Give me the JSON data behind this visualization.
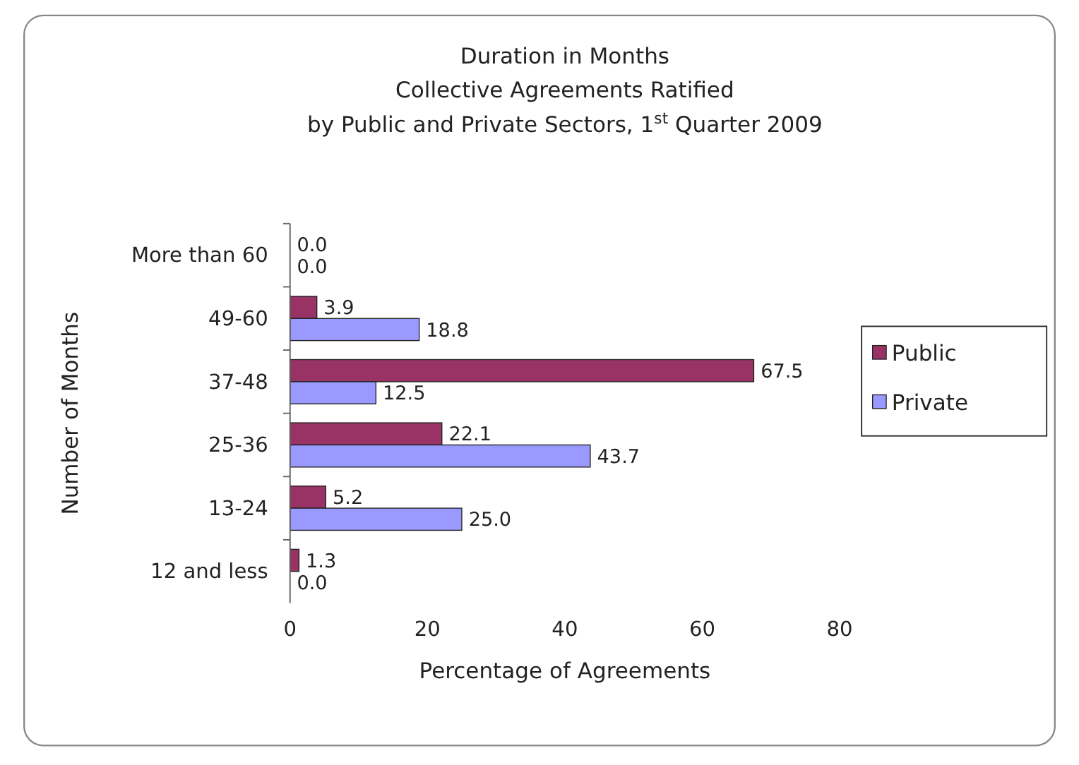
{
  "chart_data": {
    "type": "bar",
    "orientation": "horizontal",
    "title": "Duration in Months\nCollective Agreements Ratified\nby Public and Private Sectors, 1$^{st}$ Quarter 2009",
    "xlabel": "Percentage of Agreements",
    "ylabel": "Number of Months",
    "categories": [
      "More than 60",
      "49-60",
      "37-48",
      "25-36",
      "13-24",
      "12 and less"
    ],
    "series": [
      {
        "name": "Public",
        "color": "#993366",
        "values": [
          0,
          3.9,
          67.5,
          22.1,
          5.2,
          1.3
        ],
        "value_labels": [
          "0.0",
          "3.9",
          "67.5",
          "22.1",
          "5.2",
          "1.3"
        ]
      },
      {
        "name": "Private",
        "color": "#9999ff",
        "values": [
          0,
          18.8,
          12.5,
          43.7,
          25,
          0
        ],
        "value_labels": [
          "0.0",
          "18.8",
          "12.5",
          "43.7",
          "25.0",
          "0.0"
        ]
      }
    ],
    "xlim": [
      0,
      80
    ],
    "xticks": [
      0,
      20,
      40,
      60,
      80
    ],
    "grid": false,
    "legend": "right"
  }
}
